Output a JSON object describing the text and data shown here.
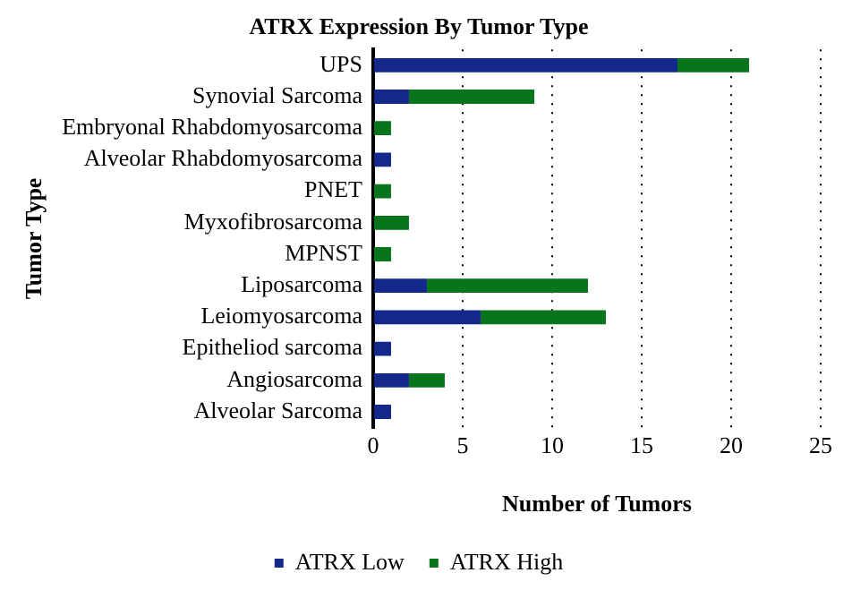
{
  "chart_data": {
    "type": "bar",
    "orientation": "horizontal",
    "stacked": true,
    "title": "ATRX Expression By Tumor Type",
    "xlabel": "Number of Tumors",
    "ylabel": "Tumor Type",
    "categories": [
      "UPS",
      "Synovial Sarcoma",
      "Embryonal Rhabdomyosarcoma",
      "Alveolar Rhabdomyosarcoma",
      "PNET",
      "Myxofibrosarcoma",
      "MPNST",
      "Liposarcoma",
      "Leiomyosarcoma",
      "Epitheliod sarcoma",
      "Angiosarcoma",
      "Alveolar Sarcoma"
    ],
    "series": [
      {
        "name": "ATRX Low",
        "color": "#14288c",
        "values": [
          17,
          2,
          0,
          1,
          0,
          0,
          0,
          3,
          6,
          1,
          2,
          1
        ]
      },
      {
        "name": "ATRX High",
        "color": "#08741c",
        "values": [
          4,
          7,
          1,
          0,
          1,
          2,
          1,
          9,
          7,
          0,
          2,
          0
        ]
      }
    ],
    "xlim": [
      0,
      25
    ],
    "xticks": [
      0,
      5,
      10,
      15,
      20,
      25
    ],
    "grid": "x",
    "legend": "bottom"
  }
}
